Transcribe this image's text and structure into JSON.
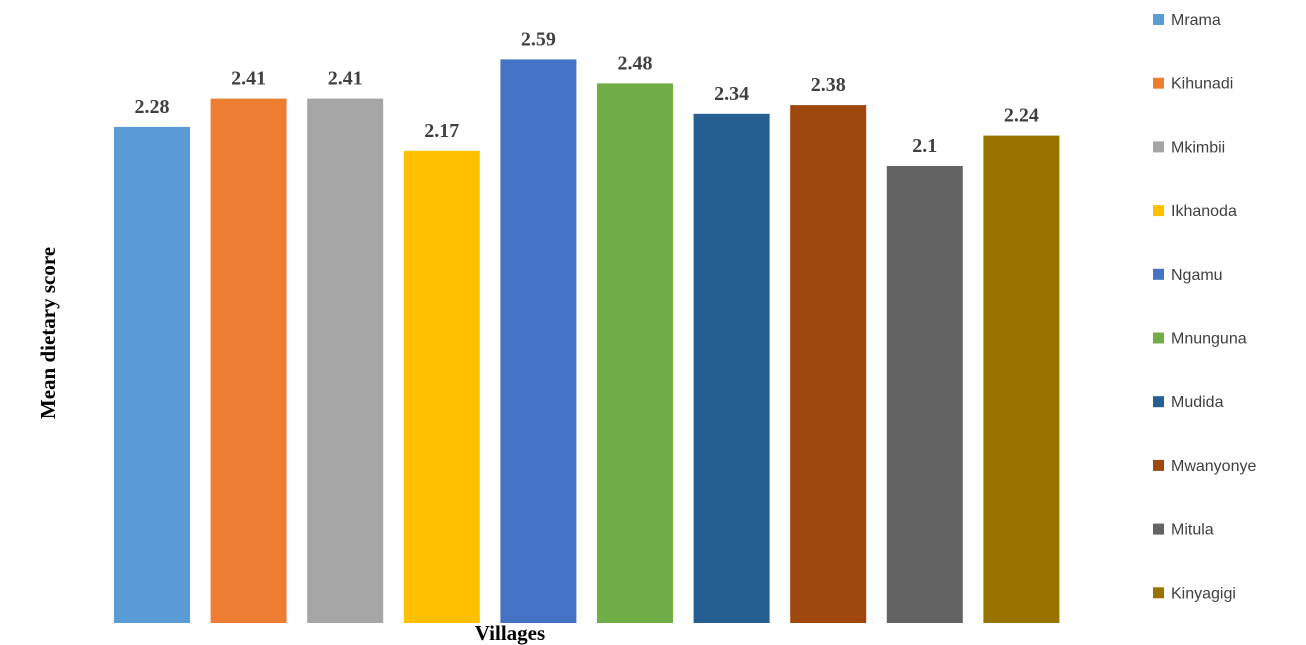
{
  "chart_data": {
    "type": "bar",
    "title": "",
    "xlabel": "Villages",
    "ylabel": "Mean dietary score",
    "ylim": [
      0,
      2.85
    ],
    "grid": false,
    "legend_position": "right",
    "categories": [
      "Mrama",
      "Kihunadi",
      "Mkimbii",
      "Ikhanoda",
      "Ngamu",
      "Mnunguna",
      "Mudida",
      "Mwanyonye",
      "Mitula",
      "Kinyagigi"
    ],
    "values": [
      2.28,
      2.41,
      2.41,
      2.17,
      2.59,
      2.48,
      2.34,
      2.38,
      2.1,
      2.24
    ],
    "value_labels": [
      "2.28",
      "2.41",
      "2.41",
      "2.17",
      "2.59",
      "2.48",
      "2.34",
      "2.38",
      "2.1",
      "2.24"
    ],
    "colors": [
      "#5B9BD5",
      "#ED7D31",
      "#A5A5A5",
      "#FFC000",
      "#4472C4",
      "#70AD47",
      "#255E91",
      "#9E480E",
      "#636363",
      "#997300"
    ]
  }
}
